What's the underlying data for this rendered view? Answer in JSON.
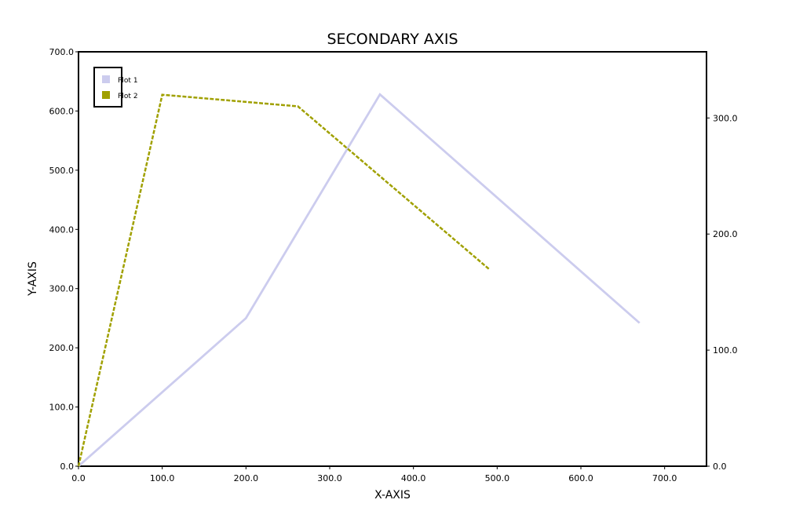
{
  "chart_data": {
    "type": "line",
    "title": "SECONDARY AXIS",
    "xlabel": "X-AXIS",
    "ylabel": "Y-AXIS",
    "xlim": [
      0,
      750
    ],
    "ylim": [
      0,
      700
    ],
    "y2lim": [
      0,
      357
    ],
    "x_ticks": [
      "0.0",
      "100.0",
      "200.0",
      "300.0",
      "400.0",
      "500.0",
      "600.0",
      "700.0"
    ],
    "y_ticks": [
      "0.0",
      "100.0",
      "200.0",
      "300.0",
      "400.0",
      "500.0",
      "600.0",
      "700.0"
    ],
    "y2_ticks": [
      "0.0",
      "100.0",
      "200.0",
      "300.0"
    ],
    "legend_position": "top-left",
    "grid": false,
    "series": [
      {
        "name": "Plot 1",
        "axis": "left",
        "color": "#ccccee",
        "style": "solid",
        "x": [
          0,
          200,
          360,
          670
        ],
        "y": [
          0,
          250,
          628,
          242
        ]
      },
      {
        "name": "Plot 2",
        "axis": "right",
        "color": "#a0a000",
        "style": "dashed",
        "x": [
          0,
          100,
          262,
          490
        ],
        "y": [
          0,
          320,
          310,
          170
        ]
      }
    ]
  }
}
